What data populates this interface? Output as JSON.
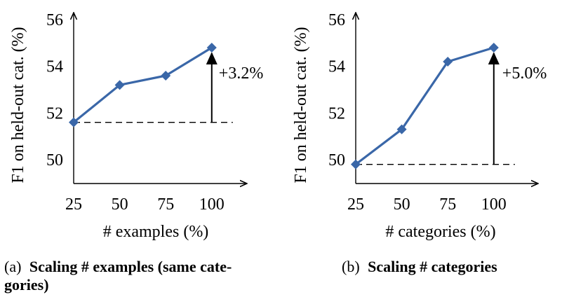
{
  "chart_data": [
    {
      "type": "line",
      "x": [
        25,
        50,
        75,
        100
      ],
      "values": [
        51.6,
        53.2,
        53.6,
        54.8
      ],
      "xlabel": "# examples (%)",
      "ylabel": "F1 on held-out cat. (%)",
      "ylim": [
        49,
        56
      ],
      "yticks": [
        50,
        52,
        54,
        56
      ],
      "xticks": [
        "25",
        "50",
        "75",
        "100"
      ],
      "baseline": 51.6,
      "annotation": "+3.2%",
      "series_color": "#3a67a8",
      "caption_label": "(a)",
      "caption_title": "Scaling # examples (same cate-",
      "caption_title_cont": "gories)"
    },
    {
      "type": "line",
      "x": [
        25,
        50,
        75,
        100
      ],
      "values": [
        49.8,
        51.3,
        54.2,
        54.8
      ],
      "xlabel": "# categories (%)",
      "ylabel": "F1 on held-out cat. (%)",
      "ylim": [
        49,
        56
      ],
      "yticks": [
        50,
        52,
        54,
        56
      ],
      "xticks": [
        "25",
        "50",
        "75",
        "100"
      ],
      "baseline": 49.8,
      "annotation": "+5.0%",
      "series_color": "#3a67a8",
      "caption_label": "(b)",
      "caption_title": "Scaling # categories"
    }
  ]
}
